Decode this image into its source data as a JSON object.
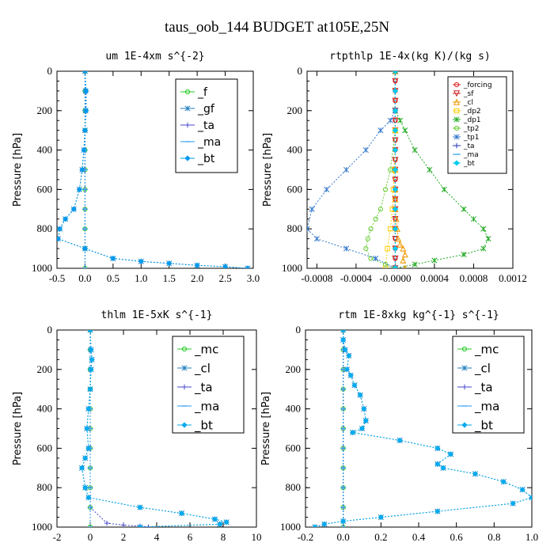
{
  "suptitle": "taus_oob_144  BUDGET at105E,25N",
  "chart_data": [
    {
      "type": "line",
      "title": "um   1E-4xm s^{-2}",
      "ylabel": "Pressure [hPa]",
      "xlim": [
        -0.5,
        3.0
      ],
      "ylim": [
        1000,
        0
      ],
      "xticks": [
        "-0.5",
        "0.0",
        "0.5",
        "1.0",
        "1.5",
        "2.0",
        "2.5",
        "3.0"
      ],
      "yticks": [
        "0",
        "200",
        "400",
        "600",
        "800",
        "1000"
      ],
      "legend": "top-right",
      "series": [
        {
          "name": "_f",
          "color": "#22cc22",
          "marker": "o",
          "x": [
            0.0,
            0.0,
            0.0,
            0.0,
            0.0,
            0.0,
            0.0,
            0.0,
            0.0,
            0.0,
            0.0
          ],
          "y": [
            0,
            100,
            200,
            300,
            400,
            500,
            600,
            700,
            800,
            900,
            1000
          ]
        },
        {
          "name": "_gf",
          "color": "#1f7fbf",
          "marker": "x",
          "x": [
            0.0,
            0.01,
            0.01,
            0.0,
            -0.02,
            -0.05,
            -0.1,
            -0.2,
            -0.35,
            -0.45,
            -0.48,
            0.0,
            0.5,
            1.0,
            1.5,
            2.0,
            2.5,
            2.9
          ],
          "y": [
            0,
            100,
            200,
            300,
            400,
            500,
            600,
            700,
            750,
            800,
            850,
            900,
            950,
            965,
            975,
            985,
            992,
            1000
          ]
        },
        {
          "name": "_ta",
          "color": "#4444cc",
          "marker": "+",
          "x": [
            0.0,
            0.0,
            0.0,
            0.0,
            0.0,
            0.0,
            0.0,
            0.0,
            0.0,
            0.0,
            0.0
          ],
          "y": [
            0,
            100,
            200,
            300,
            400,
            500,
            600,
            700,
            800,
            900,
            1000
          ]
        },
        {
          "name": "_ma",
          "color": "#2299ee",
          "marker": "-",
          "x": [
            0.0,
            0.0,
            0.0,
            0.0,
            0.0,
            0.0,
            0.0,
            0.0,
            0.0,
            0.0,
            0.0
          ],
          "y": [
            0,
            100,
            200,
            300,
            400,
            500,
            600,
            700,
            800,
            900,
            1000
          ]
        },
        {
          "name": "_bt",
          "color": "#0099ee",
          "marker": "d",
          "x": [
            0.0,
            0.02,
            0.02,
            0.0,
            -0.02,
            -0.05,
            -0.1,
            -0.2,
            -0.35,
            -0.45,
            -0.48,
            0.0,
            0.5,
            1.0,
            1.5,
            2.0,
            2.5,
            2.9
          ],
          "y": [
            0,
            100,
            200,
            300,
            400,
            500,
            600,
            700,
            750,
            800,
            850,
            900,
            950,
            965,
            975,
            985,
            992,
            1000
          ]
        }
      ]
    },
    {
      "type": "line",
      "title": "rtpthlp  1E-4x(kg K)/(kg s)",
      "ylabel": "Pressure [hPa]",
      "xlim": [
        -0.0009,
        0.0012
      ],
      "ylim": [
        1000,
        0
      ],
      "xticks": [
        "-0.0008",
        "-0.0004",
        "-0.0000",
        "0.0004",
        "0.0008",
        "0.0012"
      ],
      "xtick_values": [
        -0.0008,
        -0.0004,
        0.0,
        0.0004,
        0.0008,
        0.0012
      ],
      "yticks": [
        "0",
        "200",
        "400",
        "600",
        "800",
        "1000"
      ],
      "legend": "top-right",
      "series": [
        {
          "name": "_forcing",
          "color": "#dd2222",
          "marker": "o",
          "x": [
            0,
            0,
            0,
            0,
            0,
            0,
            0,
            0,
            0,
            0,
            0,
            0,
            0,
            0,
            0,
            0,
            0,
            0,
            0,
            0,
            0
          ],
          "y": [
            0,
            50,
            100,
            150,
            200,
            250,
            300,
            350,
            400,
            450,
            500,
            550,
            600,
            650,
            700,
            750,
            800,
            850,
            900,
            950,
            1000
          ]
        },
        {
          "name": "_sf",
          "color": "#cc2222",
          "marker": "v",
          "x": [
            0,
            0,
            0,
            0,
            0,
            0,
            0,
            0,
            0,
            0,
            0,
            0,
            0,
            0,
            0,
            0,
            0,
            0,
            0,
            0,
            0
          ],
          "y": [
            0,
            50,
            100,
            150,
            200,
            250,
            300,
            350,
            400,
            450,
            500,
            550,
            600,
            650,
            700,
            750,
            800,
            850,
            900,
            950,
            1000
          ]
        },
        {
          "name": "_cl",
          "color": "#ee9900",
          "marker": "^",
          "x": [
            0,
            0,
            0,
            0,
            0,
            0,
            1e-05,
            2e-05,
            3e-05,
            5e-05,
            8e-05,
            0.0001,
            8e-05,
            0.0001
          ],
          "y": [
            0,
            300,
            500,
            600,
            650,
            700,
            750,
            800,
            850,
            880,
            900,
            930,
            960,
            1000
          ]
        },
        {
          "name": "_dp2",
          "color": "#ffcc00",
          "marker": "s",
          "x": [
            0,
            0,
            -1e-05,
            -2e-05,
            -3e-05,
            -5e-05,
            -8e-05,
            -0.0001
          ],
          "y": [
            0,
            300,
            500,
            600,
            700,
            800,
            900,
            1000
          ]
        },
        {
          "name": "_dp1",
          "color": "#22aa22",
          "marker": "x",
          "x": [
            0,
            0,
            5e-05,
            0.0001,
            0.0002,
            0.00035,
            0.0005,
            0.0007,
            0.0008,
            0.0009,
            0.00095,
            0.0009,
            0.0007,
            0.0004,
            0.0002,
            0.0
          ],
          "y": [
            0,
            200,
            250,
            300,
            400,
            500,
            600,
            700,
            750,
            800,
            850,
            900,
            930,
            960,
            980,
            1000
          ]
        },
        {
          "name": "_tp2",
          "color": "#66cc33",
          "marker": "o",
          "x": [
            0,
            0,
            -5e-05,
            -0.0001,
            -0.00015,
            -0.0002,
            -0.00025,
            -0.00028,
            -0.0003,
            -0.00025,
            -0.0001,
            0.0
          ],
          "y": [
            0,
            300,
            500,
            600,
            700,
            750,
            800,
            850,
            900,
            950,
            980,
            1000
          ]
        },
        {
          "name": "_tp1",
          "color": "#3377cc",
          "marker": "x",
          "x": [
            0,
            0,
            -5e-05,
            -0.00015,
            -0.0003,
            -0.0005,
            -0.0007,
            -0.00085,
            -0.0009,
            -0.0008,
            -0.0005,
            -0.0002,
            0.0
          ],
          "y": [
            0,
            200,
            250,
            300,
            400,
            500,
            600,
            700,
            800,
            850,
            900,
            950,
            1000
          ]
        },
        {
          "name": "_ta",
          "color": "#2233bb",
          "marker": "+",
          "x": [
            0,
            0,
            0,
            0,
            0,
            0,
            0,
            0,
            0,
            0,
            0
          ],
          "y": [
            0,
            100,
            200,
            300,
            400,
            500,
            600,
            700,
            800,
            900,
            1000
          ]
        },
        {
          "name": "_ma",
          "color": "#2299ee",
          "marker": "-",
          "x": [
            0,
            0,
            0,
            0,
            0,
            0,
            0,
            0,
            0,
            0,
            0
          ],
          "y": [
            0,
            100,
            200,
            300,
            400,
            500,
            600,
            700,
            800,
            900,
            1000
          ]
        },
        {
          "name": "_bt",
          "color": "#00ccee",
          "marker": "d",
          "x": [
            0,
            0,
            0,
            0,
            0,
            0,
            0,
            0,
            0,
            0,
            0
          ],
          "y": [
            0,
            100,
            200,
            300,
            400,
            500,
            600,
            700,
            800,
            900,
            1000
          ]
        }
      ]
    },
    {
      "type": "line",
      "title": "thlm  1E-5xK  s^{-1}",
      "ylabel": "Pressure [hPa]",
      "xlim": [
        -2,
        10
      ],
      "ylim": [
        1000,
        0
      ],
      "xticks": [
        "-2",
        "0",
        "2",
        "4",
        "6",
        "8",
        "10"
      ],
      "yticks": [
        "0",
        "200",
        "400",
        "600",
        "800",
        "1000"
      ],
      "legend": "top-right",
      "series": [
        {
          "name": "_mc",
          "color": "#22cc22",
          "marker": "o",
          "x": [
            0,
            0,
            0,
            0,
            0,
            0,
            0,
            0,
            0,
            0,
            0
          ],
          "y": [
            0,
            100,
            200,
            300,
            400,
            500,
            600,
            700,
            800,
            900,
            1000
          ]
        },
        {
          "name": "_cl",
          "color": "#1f7fbf",
          "marker": "x",
          "x": [
            0,
            0.05,
            0.1,
            0.05,
            0,
            -0.1,
            -0.2,
            -0.1,
            -0.3,
            -0.5,
            -0.3,
            -0.1,
            3,
            5.5,
            7.5,
            8.2,
            7.8,
            3.0
          ],
          "y": [
            0,
            100,
            150,
            200,
            300,
            400,
            500,
            600,
            650,
            700,
            800,
            850,
            900,
            930,
            960,
            975,
            985,
            1000
          ]
        },
        {
          "name": "_ta",
          "color": "#4444cc",
          "marker": "+",
          "x": [
            0,
            0,
            0,
            0,
            0,
            0,
            0,
            0,
            0,
            0,
            1,
            2,
            3,
            3.5
          ],
          "y": [
            0,
            100,
            200,
            300,
            400,
            500,
            600,
            700,
            800,
            900,
            980,
            990,
            995,
            1000
          ]
        },
        {
          "name": "_ma",
          "color": "#2299ee",
          "marker": "-",
          "x": [
            0,
            0,
            0,
            0,
            0,
            0,
            0,
            0,
            0,
            0,
            0
          ],
          "y": [
            0,
            100,
            200,
            300,
            400,
            500,
            600,
            700,
            800,
            900,
            1000
          ]
        },
        {
          "name": "_bt",
          "color": "#00aaee",
          "marker": "d",
          "x": [
            0,
            0.05,
            0.1,
            0.05,
            0,
            -0.1,
            -0.2,
            -0.1,
            -0.3,
            -0.5,
            -0.3,
            -0.1,
            3,
            5.5,
            7.5,
            8.2,
            7.8,
            3.0
          ],
          "y": [
            0,
            100,
            150,
            200,
            300,
            400,
            500,
            600,
            650,
            700,
            800,
            850,
            900,
            930,
            960,
            975,
            985,
            1000
          ]
        }
      ]
    },
    {
      "type": "line",
      "title": "rtm  1E-8xkg kg^{-1} s^{-1}",
      "ylabel": "Pressure [hPa]",
      "xlim": [
        -0.2,
        1.0
      ],
      "ylim": [
        1000,
        0
      ],
      "xticks": [
        "-0.2",
        "0.0",
        "0.2",
        "0.4",
        "0.6",
        "0.8",
        "1.0"
      ],
      "yticks": [
        "0",
        "200",
        "400",
        "600",
        "800",
        "1000"
      ],
      "legend": "top-right",
      "series": [
        {
          "name": "_mc",
          "color": "#22cc22",
          "marker": "o",
          "x": [
            0,
            0,
            0,
            0,
            0,
            0,
            0,
            0,
            0,
            0,
            0
          ],
          "y": [
            0,
            100,
            200,
            300,
            400,
            500,
            600,
            700,
            800,
            900,
            1000
          ]
        },
        {
          "name": "_cl",
          "color": "#1f7fbf",
          "marker": "x",
          "x": [
            0,
            0,
            0.01,
            0.03,
            0.02,
            0.04,
            0.06,
            0.09,
            0.11,
            0.12,
            0.1,
            0.05,
            0.3,
            0.5,
            0.57,
            0.5,
            0.53,
            0.7,
            0.85,
            0.95,
            1.0,
            0.9,
            0.5,
            0.2,
            0.0,
            -0.1,
            -0.15
          ],
          "y": [
            0,
            50,
            100,
            130,
            200,
            230,
            280,
            330,
            400,
            460,
            500,
            520,
            560,
            600,
            630,
            680,
            700,
            730,
            770,
            810,
            850,
            880,
            920,
            950,
            970,
            985,
            1000
          ]
        },
        {
          "name": "_ta",
          "color": "#4444cc",
          "marker": "+",
          "x": [
            0,
            0,
            0,
            0,
            0,
            0,
            0,
            0,
            0,
            0,
            0
          ],
          "y": [
            0,
            100,
            200,
            300,
            400,
            500,
            600,
            700,
            800,
            900,
            1000
          ]
        },
        {
          "name": "_ma",
          "color": "#2299ee",
          "marker": "-",
          "x": [
            0,
            0,
            0,
            0,
            0,
            0,
            0,
            0,
            0,
            0,
            0
          ],
          "y": [
            0,
            100,
            200,
            300,
            400,
            500,
            600,
            700,
            800,
            900,
            1000
          ]
        },
        {
          "name": "_bt",
          "color": "#00aaee",
          "marker": "d",
          "x": [
            0,
            0,
            0.01,
            0.03,
            0.02,
            0.04,
            0.06,
            0.09,
            0.11,
            0.12,
            0.1,
            0.05,
            0.3,
            0.5,
            0.57,
            0.5,
            0.53,
            0.7,
            0.85,
            0.95,
            1.0,
            0.9,
            0.5,
            0.2,
            0.0,
            -0.1,
            -0.15
          ],
          "y": [
            0,
            50,
            100,
            130,
            200,
            230,
            280,
            330,
            400,
            460,
            500,
            520,
            560,
            600,
            630,
            680,
            700,
            730,
            770,
            810,
            850,
            880,
            920,
            950,
            970,
            985,
            1000
          ]
        }
      ]
    }
  ]
}
